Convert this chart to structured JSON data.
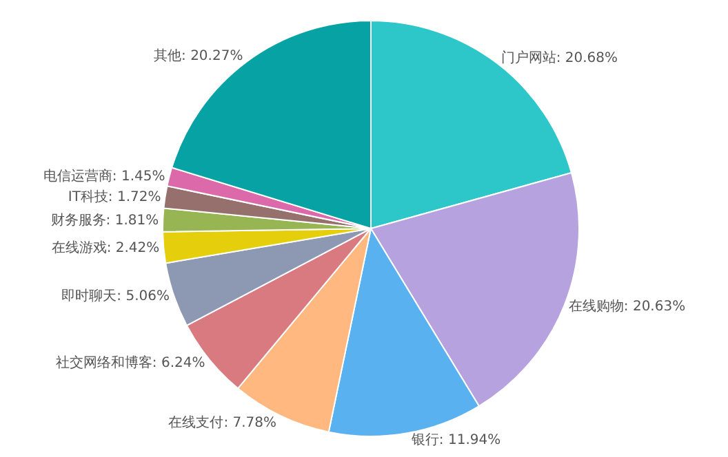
{
  "chart_data": {
    "type": "pie",
    "categories": [
      "门户网站",
      "在线购物",
      "银行",
      "在线支付",
      "社交网络和博客",
      "即时聊天",
      "在线游戏",
      "财务服务",
      "IT科技",
      "电信运营商",
      "其他"
    ],
    "values": [
      20.68,
      20.63,
      11.94,
      7.78,
      6.24,
      5.06,
      2.42,
      1.81,
      1.72,
      1.45,
      20.27
    ],
    "colors": [
      "#2ec7c9",
      "#b6a2de",
      "#5ab1ef",
      "#ffb980",
      "#d87a80",
      "#8d98b3",
      "#e5cf0d",
      "#97b552",
      "#95706d",
      "#dc69aa",
      "#07a2a4"
    ],
    "value_labels": [
      "20.68%",
      "20.63%",
      "11.94%",
      "7.78%",
      "6.24%",
      "5.06%",
      "2.42%",
      "1.81%",
      "1.72%",
      "1.45%",
      "20.27%"
    ],
    "legend": false
  }
}
